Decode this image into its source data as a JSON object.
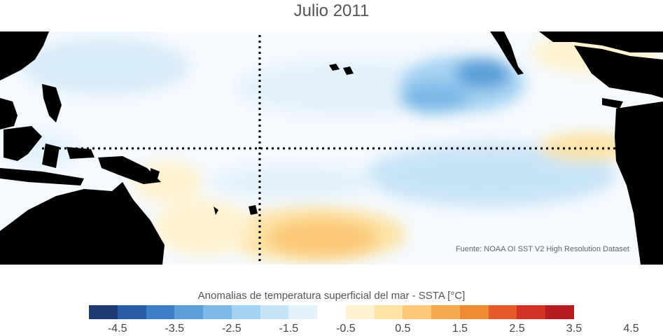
{
  "title": "Julio 2011",
  "source": "Fuente: NOAA OI SST V2 High Resolution Dataset",
  "colorbar": {
    "title": "Anomalias de temperatura superficial del mar - SSTA  [°C]",
    "colors": [
      "#1f3a72",
      "#2a5ca8",
      "#3d7fc6",
      "#5a9fd8",
      "#7cb9e6",
      "#a4d2f2",
      "#c7e4f7",
      "#e4f2fb",
      "#ffffff",
      "#fff2d0",
      "#fde3a6",
      "#fbc978",
      "#f6a94c",
      "#f08b34",
      "#e45a2a",
      "#d23224",
      "#b51d22"
    ],
    "ticks": [
      "-4.5",
      "-3.5",
      "-2.5",
      "-1.5",
      "-0.5",
      "0.5",
      "1.5",
      "2.5",
      "3.5",
      "4.5"
    ]
  }
}
